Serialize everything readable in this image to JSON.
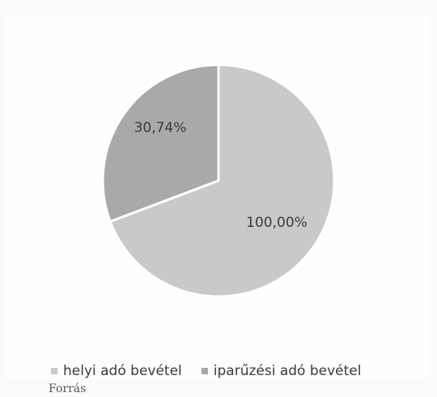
{
  "chart_data": {
    "type": "pie",
    "slices": [
      {
        "name": "helyi adó bevétel",
        "label": "100,00%",
        "value": 69.26,
        "color": "#c9c9c9"
      },
      {
        "name": "iparűzési adó bevétel",
        "label": "30,74%",
        "value": 30.74,
        "color": "#a9a9a9"
      }
    ],
    "legend_position": "bottom"
  },
  "fragment": "Forrás"
}
